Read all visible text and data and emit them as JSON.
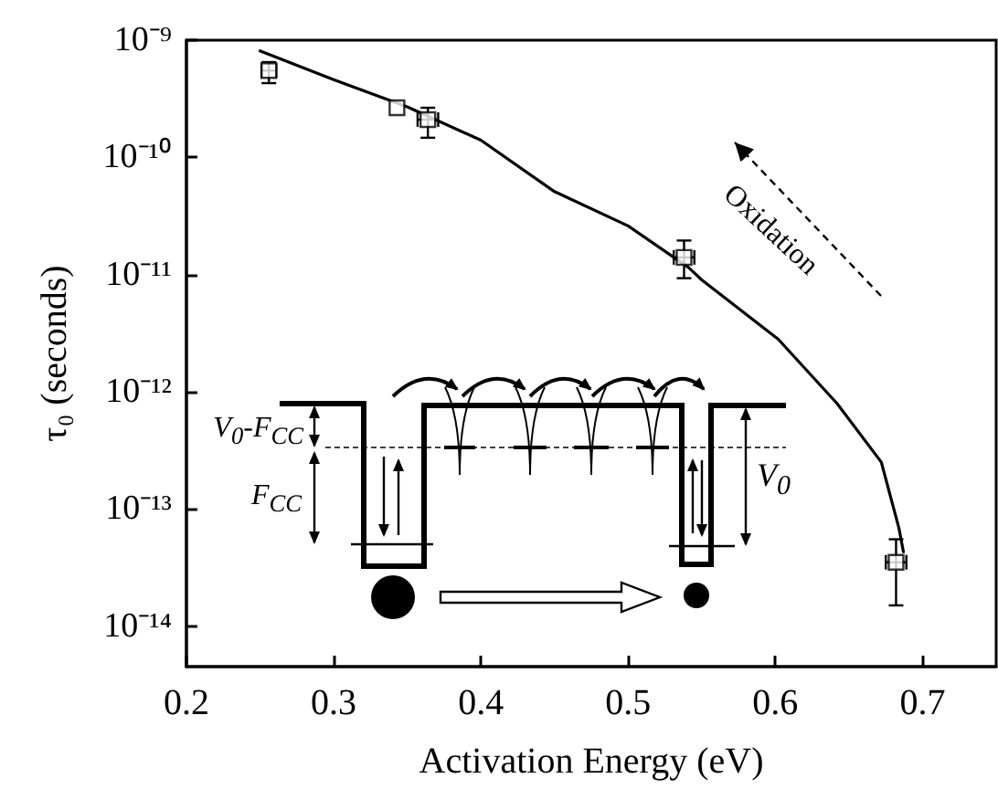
{
  "chart_data": {
    "type": "scatter",
    "xlabel": "Activation Energy (eV)",
    "ylabel": "τ₀ (seconds)",
    "log": "y",
    "xlim": [
      0.2,
      0.75
    ],
    "xticks": [
      0.2,
      0.3,
      0.4,
      0.5,
      0.6,
      0.7
    ],
    "ylim": [
      4.5e-15,
      1e-09
    ],
    "yticks": [
      {
        "value": 1e-14,
        "label": "10⁻¹⁴"
      },
      {
        "value": 1e-13,
        "label": "10⁻¹³"
      },
      {
        "value": 1e-12,
        "label": "10⁻¹²"
      },
      {
        "value": 1e-11,
        "label": "10⁻¹¹"
      },
      {
        "value": 1e-10,
        "label": "10⁻¹⁰"
      },
      {
        "value": 1e-09,
        "label": "10⁻⁹"
      }
    ],
    "grid": false,
    "marker": "square",
    "series": [
      {
        "color": "#000000",
        "x": [
          0.256,
          0.343,
          0.364,
          0.538,
          0.682
        ],
        "values": [
          5.5e-10,
          2.65e-10,
          2.1e-10,
          1.4e-11,
          3.5e-14
        ],
        "errors": [
          [
            4.3e-10,
            6.5e-10
          ],
          null,
          [
            1.47e-10,
            2.65e-10
          ],
          [
            9.3e-12,
            1.95e-11
          ],
          [
            1.5e-14,
            5.5e-14
          ]
        ],
        "xerrors": [
          0.005,
          null,
          0.007,
          0.007,
          0.007
        ]
      },
      {
        "type": "line",
        "color": "#000000",
        "line_style": "solid",
        "marker": "none",
        "x": [
          0.25,
          0.3,
          0.35,
          0.4,
          0.45,
          0.5,
          0.541,
          0.55,
          0.602,
          0.642,
          0.672,
          0.684,
          0.687
        ],
        "values": [
          8.1e-10,
          4.6e-10,
          2.7e-10,
          1.4e-10,
          5.1e-11,
          2.6e-11,
          1.15e-11,
          9e-12,
          2.8e-12,
          7.9e-13,
          2.5e-13,
          6.8e-14,
          4.3e-14
        ]
      }
    ],
    "annotations": [
      "Oxidation",
      "V$_{0}$-F$_{CC}$",
      "F$_{CC}$",
      "V$_{0}$"
    ]
  }
}
